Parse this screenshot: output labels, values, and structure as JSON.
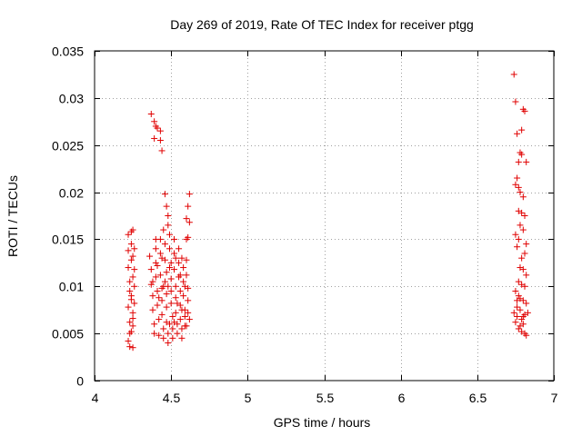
{
  "chart_data": {
    "type": "scatter",
    "title": "Day 269 of 2019, Rate Of TEC Index for receiver ptgg",
    "xlabel": "GPS time / hours",
    "ylabel": "ROTI / TECUs",
    "xlim": [
      4,
      7
    ],
    "ylim": [
      0,
      0.035
    ],
    "x_ticks": [
      4,
      4.5,
      5,
      5.5,
      6,
      6.5,
      7
    ],
    "x_tick_labels": [
      "4",
      "4.5",
      "5",
      "5.5",
      "6",
      "6.5",
      "7"
    ],
    "y_ticks": [
      0,
      0.005,
      0.01,
      0.015,
      0.02,
      0.025,
      0.03,
      0.035
    ],
    "y_tick_labels": [
      "0",
      "0.005",
      "0.01",
      "0.015",
      "0.02",
      "0.025",
      "0.03",
      "0.035"
    ],
    "grid": true,
    "marker": "+",
    "color": "#e00000",
    "series": [
      {
        "name": "ROTI",
        "points": [
          [
            4.22,
            0.0155
          ],
          [
            4.22,
            0.0138
          ],
          [
            4.22,
            0.012
          ],
          [
            4.23,
            0.0095
          ],
          [
            4.22,
            0.0078
          ],
          [
            4.23,
            0.0062
          ],
          [
            4.23,
            0.005
          ],
          [
            4.22,
            0.0042
          ],
          [
            4.23,
            0.0036
          ],
          [
            4.24,
            0.0158
          ],
          [
            4.24,
            0.0145
          ],
          [
            4.24,
            0.0128
          ],
          [
            4.25,
            0.011
          ],
          [
            4.24,
            0.009
          ],
          [
            4.25,
            0.0072
          ],
          [
            4.25,
            0.0058
          ],
          [
            4.25,
            0.0035
          ],
          [
            4.25,
            0.016
          ],
          [
            4.26,
            0.014
          ],
          [
            4.26,
            0.01
          ],
          [
            4.26,
            0.0082
          ],
          [
            4.25,
            0.0066
          ],
          [
            4.24,
            0.0052
          ],
          [
            4.23,
            0.0105
          ],
          [
            4.25,
            0.0132
          ],
          [
            4.26,
            0.0118
          ],
          [
            4.24,
            0.0086
          ],
          [
            4.37,
            0.0283
          ],
          [
            4.39,
            0.0275
          ],
          [
            4.4,
            0.027
          ],
          [
            4.41,
            0.0268
          ],
          [
            4.39,
            0.0257
          ],
          [
            4.43,
            0.0265
          ],
          [
            4.43,
            0.0255
          ],
          [
            4.44,
            0.0244
          ],
          [
            4.36,
            0.0132
          ],
          [
            4.37,
            0.0118
          ],
          [
            4.37,
            0.0102
          ],
          [
            4.38,
            0.009
          ],
          [
            4.38,
            0.0075
          ],
          [
            4.39,
            0.006
          ],
          [
            4.39,
            0.005
          ],
          [
            4.4,
            0.014
          ],
          [
            4.4,
            0.0125
          ],
          [
            4.4,
            0.011
          ],
          [
            4.41,
            0.0095
          ],
          [
            4.41,
            0.008
          ],
          [
            4.42,
            0.0065
          ],
          [
            4.42,
            0.0048
          ],
          [
            4.43,
            0.015
          ],
          [
            4.43,
            0.0135
          ],
          [
            4.43,
            0.0112
          ],
          [
            4.44,
            0.0098
          ],
          [
            4.44,
            0.0085
          ],
          [
            4.44,
            0.007
          ],
          [
            4.45,
            0.0055
          ],
          [
            4.45,
            0.0045
          ],
          [
            4.45,
            0.016
          ],
          [
            4.46,
            0.0145
          ],
          [
            4.46,
            0.0128
          ],
          [
            4.46,
            0.0105
          ],
          [
            4.47,
            0.0092
          ],
          [
            4.47,
            0.0078
          ],
          [
            4.47,
            0.0062
          ],
          [
            4.48,
            0.005
          ],
          [
            4.48,
            0.004
          ],
          [
            4.46,
            0.0198
          ],
          [
            4.47,
            0.0185
          ],
          [
            4.48,
            0.0175
          ],
          [
            4.48,
            0.0165
          ],
          [
            4.49,
            0.0155
          ],
          [
            4.49,
            0.014
          ],
          [
            4.49,
            0.012
          ],
          [
            4.5,
            0.0108
          ],
          [
            4.5,
            0.0095
          ],
          [
            4.5,
            0.0082
          ],
          [
            4.51,
            0.0068
          ],
          [
            4.51,
            0.0055
          ],
          [
            4.51,
            0.0045
          ],
          [
            4.52,
            0.015
          ],
          [
            4.52,
            0.0135
          ],
          [
            4.52,
            0.0118
          ],
          [
            4.53,
            0.01
          ],
          [
            4.53,
            0.0088
          ],
          [
            4.53,
            0.0072
          ],
          [
            4.54,
            0.006
          ],
          [
            4.54,
            0.005
          ],
          [
            4.55,
            0.014
          ],
          [
            4.55,
            0.0125
          ],
          [
            4.55,
            0.011
          ],
          [
            4.56,
            0.0095
          ],
          [
            4.56,
            0.008
          ],
          [
            4.56,
            0.0065
          ],
          [
            4.57,
            0.0055
          ],
          [
            4.57,
            0.0045
          ],
          [
            4.57,
            0.013
          ],
          [
            4.58,
            0.012
          ],
          [
            4.58,
            0.0105
          ],
          [
            4.58,
            0.009
          ],
          [
            4.59,
            0.0075
          ],
          [
            4.59,
            0.0068
          ],
          [
            4.59,
            0.0058
          ],
          [
            4.6,
            0.015
          ],
          [
            4.6,
            0.0128
          ],
          [
            4.6,
            0.0112
          ],
          [
            4.61,
            0.0098
          ],
          [
            4.61,
            0.0085
          ],
          [
            4.61,
            0.0072
          ],
          [
            4.62,
            0.0065
          ],
          [
            4.62,
            0.0198
          ],
          [
            4.61,
            0.0185
          ],
          [
            4.6,
            0.0172
          ],
          [
            4.62,
            0.0168
          ],
          [
            4.61,
            0.0152
          ],
          [
            4.38,
            0.0105
          ],
          [
            4.41,
            0.0122
          ],
          [
            4.44,
            0.013
          ],
          [
            4.47,
            0.0115
          ],
          [
            4.5,
            0.0125
          ],
          [
            4.53,
            0.013
          ],
          [
            4.56,
            0.0112
          ],
          [
            4.59,
            0.01
          ],
          [
            4.42,
            0.0088
          ],
          [
            4.48,
            0.01
          ],
          [
            4.54,
            0.0082
          ],
          [
            4.4,
            0.015
          ],
          [
            4.45,
            0.01
          ],
          [
            4.49,
            0.006
          ],
          [
            4.52,
            0.0062
          ],
          [
            4.57,
            0.0075
          ],
          [
            4.6,
            0.0058
          ],
          [
            6.74,
            0.0325
          ],
          [
            6.75,
            0.0296
          ],
          [
            6.8,
            0.0288
          ],
          [
            6.81,
            0.0286
          ],
          [
            6.79,
            0.0266
          ],
          [
            6.76,
            0.0262
          ],
          [
            6.78,
            0.0242
          ],
          [
            6.79,
            0.024
          ],
          [
            6.77,
            0.0232
          ],
          [
            6.82,
            0.0232
          ],
          [
            6.76,
            0.0215
          ],
          [
            6.75,
            0.0208
          ],
          [
            6.77,
            0.0205
          ],
          [
            6.78,
            0.02
          ],
          [
            6.8,
            0.0195
          ],
          [
            6.77,
            0.018
          ],
          [
            6.79,
            0.0178
          ],
          [
            6.81,
            0.0175
          ],
          [
            6.78,
            0.0165
          ],
          [
            6.8,
            0.016
          ],
          [
            6.75,
            0.0155
          ],
          [
            6.77,
            0.015
          ],
          [
            6.76,
            0.0142
          ],
          [
            6.82,
            0.0145
          ],
          [
            6.81,
            0.0135
          ],
          [
            6.79,
            0.013
          ],
          [
            6.78,
            0.012
          ],
          [
            6.8,
            0.0118
          ],
          [
            6.82,
            0.0112
          ],
          [
            6.77,
            0.0105
          ],
          [
            6.79,
            0.0102
          ],
          [
            6.81,
            0.01
          ],
          [
            6.75,
            0.0095
          ],
          [
            6.77,
            0.009
          ],
          [
            6.78,
            0.0087
          ],
          [
            6.8,
            0.0085
          ],
          [
            6.82,
            0.0082
          ],
          [
            6.76,
            0.0078
          ],
          [
            6.78,
            0.0075
          ],
          [
            6.74,
            0.0072
          ],
          [
            6.81,
            0.007
          ],
          [
            6.76,
            0.0068
          ],
          [
            6.79,
            0.0065
          ],
          [
            6.75,
            0.0062
          ],
          [
            6.8,
            0.006
          ],
          [
            6.78,
            0.0058
          ],
          [
            6.77,
            0.0055
          ],
          [
            6.79,
            0.0052
          ],
          [
            6.81,
            0.005
          ],
          [
            6.82,
            0.0048
          ],
          [
            6.76,
            0.0085
          ],
          [
            6.8,
            0.0068
          ],
          [
            6.83,
            0.0072
          ]
        ]
      }
    ]
  }
}
